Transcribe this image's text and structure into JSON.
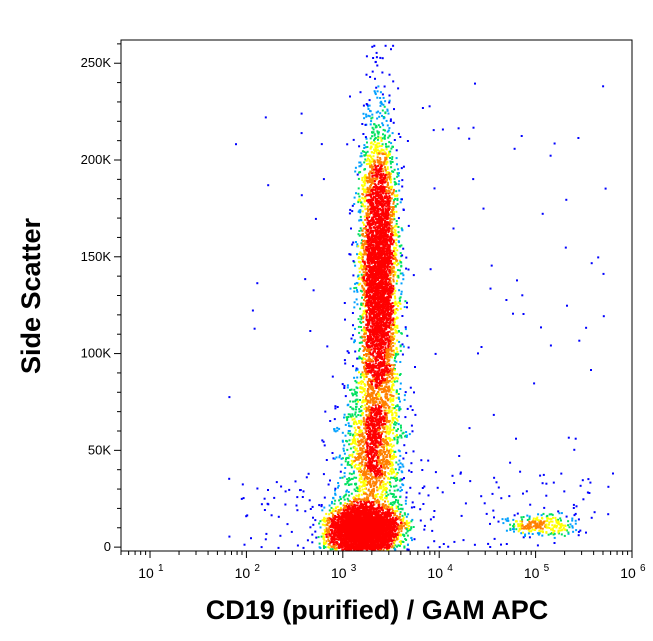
{
  "chart_data": {
    "type": "scatter",
    "subtype": "flow-cytometry-density-dot-plot",
    "xlabel": "CD19 (purified) / GAM APC",
    "ylabel": "Side Scatter",
    "x_scale": "log",
    "xlim": [
      5,
      1000000
    ],
    "ylim": [
      -2000,
      262000
    ],
    "x_ticks": [
      {
        "value": 10,
        "base": "10",
        "exp": "1"
      },
      {
        "value": 100,
        "base": "10",
        "exp": "2"
      },
      {
        "value": 1000,
        "base": "10",
        "exp": "3"
      },
      {
        "value": 10000,
        "base": "10",
        "exp": "4"
      },
      {
        "value": 100000,
        "base": "10",
        "exp": "5"
      },
      {
        "value": 1000000,
        "base": "10",
        "exp": "6"
      }
    ],
    "y_ticks": [
      {
        "value": 0,
        "label": "0"
      },
      {
        "value": 50000,
        "label": "50K"
      },
      {
        "value": 100000,
        "label": "100K"
      },
      {
        "value": 150000,
        "label": "150K"
      },
      {
        "value": 200000,
        "label": "200K"
      },
      {
        "value": 250000,
        "label": "250K"
      }
    ],
    "grid": false,
    "legend": "none",
    "colormap": [
      "#0000ff",
      "#00a0ff",
      "#00e060",
      "#ffff00",
      "#ff8000",
      "#ff0000"
    ],
    "populations": [
      {
        "center_x": 1600,
        "center_y": 10000,
        "spread_x_log10": 0.18,
        "spread_y": 6000,
        "count": 3800,
        "peak_density": "high"
      },
      {
        "center_x": 2300,
        "center_y": 140000,
        "spread_x_log10": 0.1,
        "spread_y": 38000,
        "count": 4500,
        "peak_density": "medium"
      },
      {
        "center_x": 2000,
        "center_y": 50000,
        "spread_x_log10": 0.17,
        "spread_y": 20000,
        "count": 1500,
        "peak_density": "low"
      },
      {
        "center_x": 110000,
        "center_y": 12000,
        "spread_x_log10": 0.18,
        "spread_y": 3000,
        "count": 260,
        "peak_density": "medium"
      }
    ]
  }
}
